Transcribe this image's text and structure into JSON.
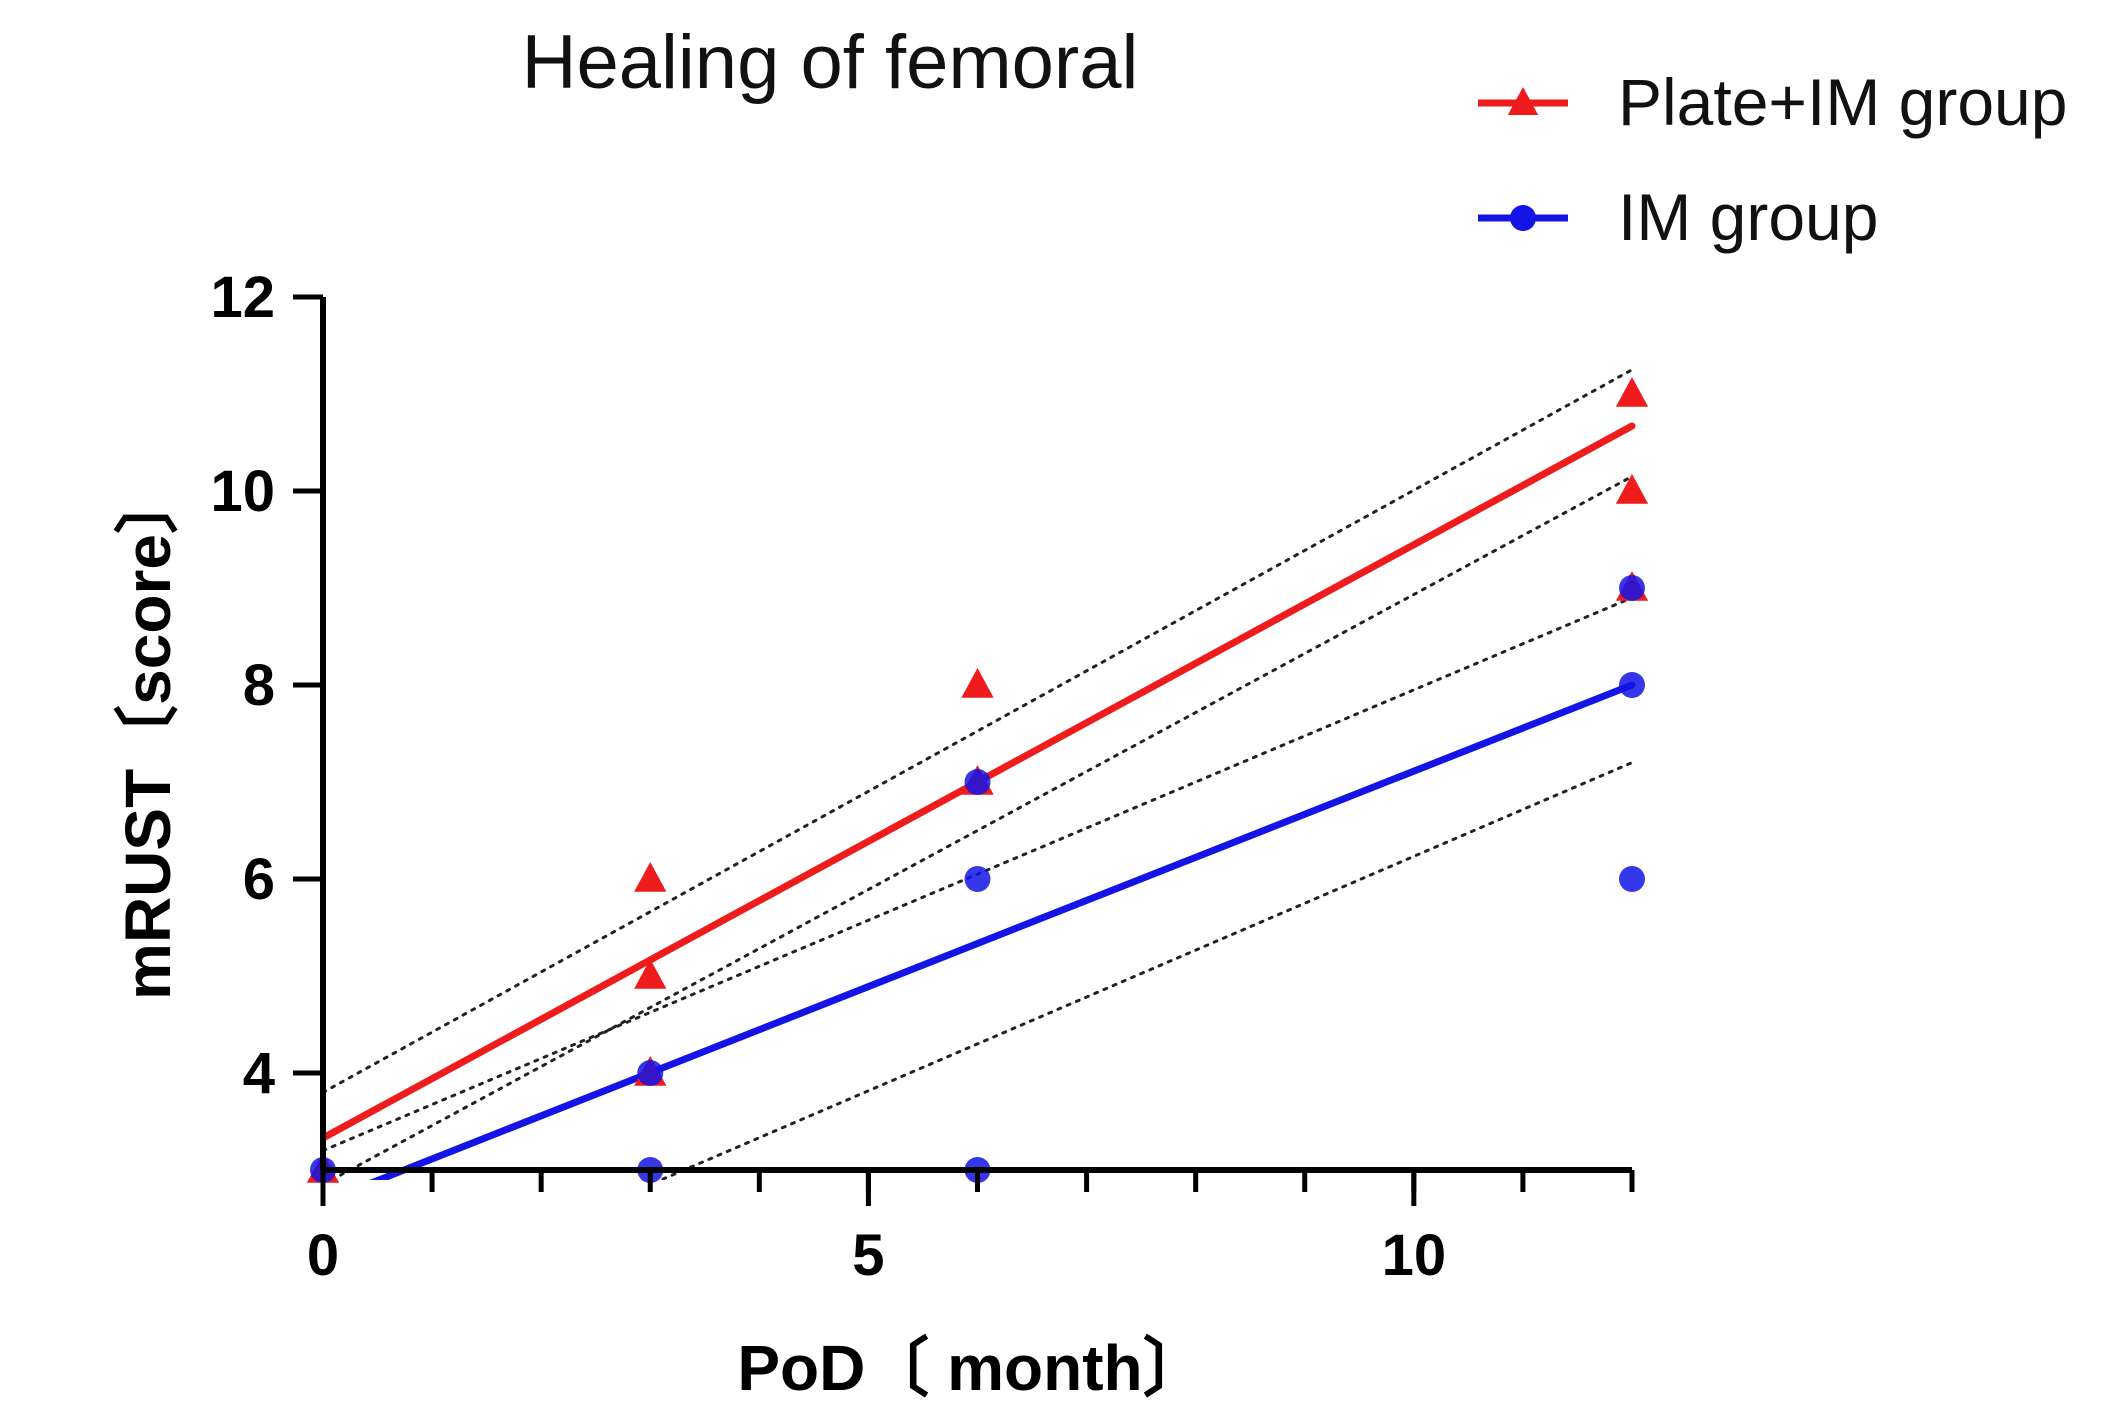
{
  "chart_data": {
    "type": "scatter",
    "title": "Healing of femoral",
    "xlabel": "PoD〔 month〕",
    "ylabel": "mRUST〔score〕",
    "xlim": [
      0,
      12
    ],
    "ylim": [
      3,
      12
    ],
    "x_ticks": [
      0,
      5,
      10
    ],
    "x_minor_ticks": [
      0,
      1,
      2,
      3,
      4,
      5,
      6,
      7,
      8,
      9,
      10,
      11,
      12
    ],
    "y_ticks": [
      4,
      6,
      8,
      10,
      12
    ],
    "legend_position": "top-right",
    "grid": false,
    "series": [
      {
        "name": "Plate+IM group",
        "color": "#ee1c1c",
        "marker": "triangle",
        "points": [
          [
            0,
            3
          ],
          [
            3,
            4
          ],
          [
            3,
            5
          ],
          [
            3,
            6
          ],
          [
            6,
            7
          ],
          [
            6,
            8
          ],
          [
            12,
            9
          ],
          [
            12,
            10
          ],
          [
            12,
            11
          ]
        ],
        "fit": {
          "x": [
            0,
            12
          ],
          "y": [
            3.33,
            10.67
          ]
        },
        "ci_upper": {
          "x": [
            0,
            12
          ],
          "y": [
            3.8,
            11.25
          ]
        },
        "ci_lower": {
          "x": [
            0,
            12
          ],
          "y": [
            2.85,
            10.15
          ]
        }
      },
      {
        "name": "IM group",
        "color": "#1414e6",
        "marker": "circle",
        "points": [
          [
            0,
            3
          ],
          [
            3,
            3
          ],
          [
            3,
            4
          ],
          [
            6,
            3
          ],
          [
            6,
            6
          ],
          [
            6,
            7
          ],
          [
            12,
            6
          ],
          [
            12,
            8
          ],
          [
            12,
            9
          ]
        ],
        "fit": {
          "x": [
            0,
            12
          ],
          "y": [
            2.67,
            8.0
          ]
        },
        "ci_upper": {
          "x": [
            0,
            12
          ],
          "y": [
            3.2,
            8.9
          ]
        },
        "ci_lower": {
          "x": [
            0,
            12
          ],
          "y": [
            1.4,
            7.2
          ]
        }
      }
    ]
  }
}
